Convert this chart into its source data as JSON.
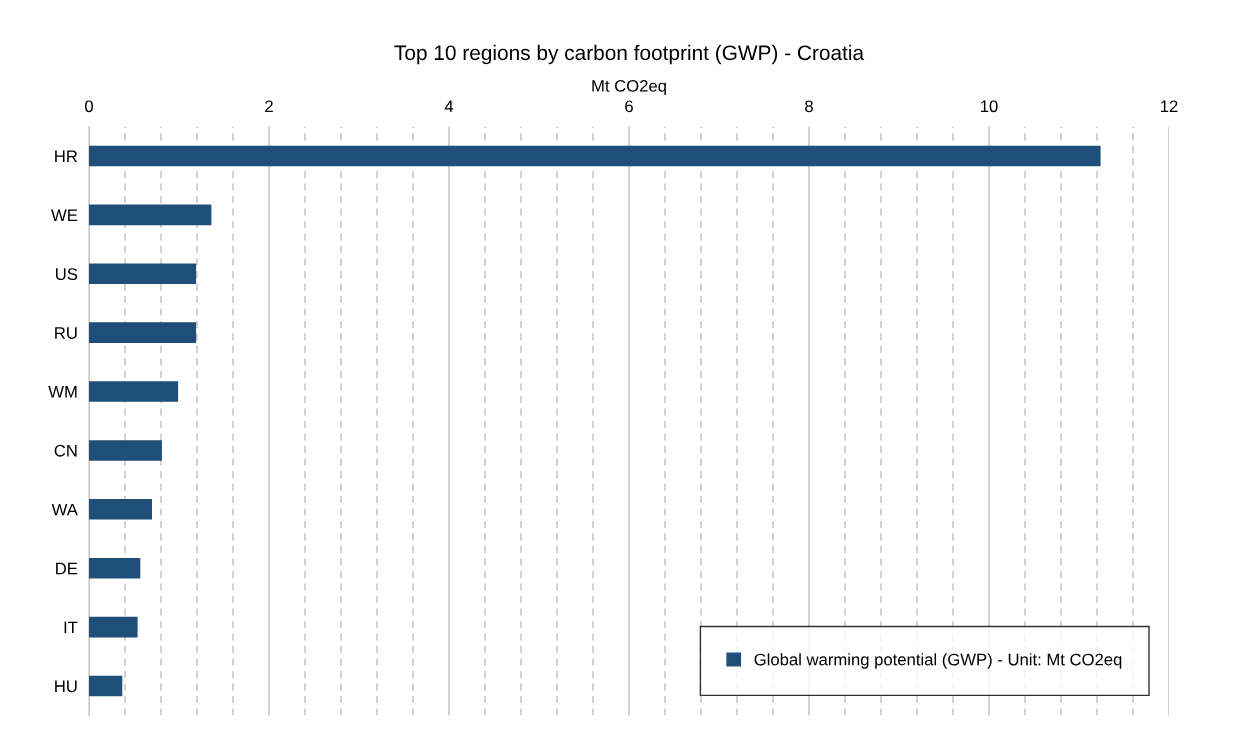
{
  "chart_data": {
    "type": "bar",
    "orientation": "horizontal",
    "title": "Top 10 regions by carbon footprint (GWP) - Croatia",
    "xlabel": "Mt CO2eq",
    "categories": [
      "HR",
      "WE",
      "US",
      "RU",
      "WM",
      "CN",
      "WA",
      "DE",
      "IT",
      "HU"
    ],
    "series": [
      {
        "name": "Global warming potential (GWP) - Unit: Mt CO2eq",
        "color": "#1f4e79",
        "values": [
          11.24,
          1.36,
          1.19,
          1.19,
          0.99,
          0.81,
          0.7,
          0.57,
          0.54,
          0.37
        ]
      }
    ],
    "xlim": [
      0,
      12
    ],
    "xticks": [
      0,
      {
        "value": 0.4,
        "label": null
      },
      {
        "value": 0.8,
        "label": null
      },
      {
        "value": 1.2,
        "label": null
      },
      {
        "value": 1.6,
        "label": null
      },
      2,
      {
        "value": 2.4,
        "label": null
      },
      {
        "value": 2.8,
        "label": null
      },
      {
        "value": 3.2,
        "label": null
      },
      {
        "value": 3.6,
        "label": null
      },
      4,
      {
        "value": 4.4,
        "label": null
      },
      {
        "value": 4.8,
        "label": null
      },
      {
        "value": 5.2,
        "label": null
      },
      {
        "value": 5.6,
        "label": null
      },
      6,
      {
        "value": 6.4,
        "label": null
      },
      {
        "value": 6.8,
        "label": null
      },
      {
        "value": 7.2,
        "label": null
      },
      {
        "value": 7.6,
        "label": null
      },
      8,
      {
        "value": 8.4,
        "label": null
      },
      {
        "value": 8.8,
        "label": null
      },
      {
        "value": 9.2,
        "label": null
      },
      {
        "value": 9.6,
        "label": null
      },
      10,
      {
        "value": 10.4,
        "label": null
      },
      {
        "value": 10.8,
        "label": null
      },
      {
        "value": 11.2,
        "label": null
      },
      {
        "value": 11.6,
        "label": null
      },
      12
    ],
    "grid": "x",
    "legend": "bottom right"
  }
}
